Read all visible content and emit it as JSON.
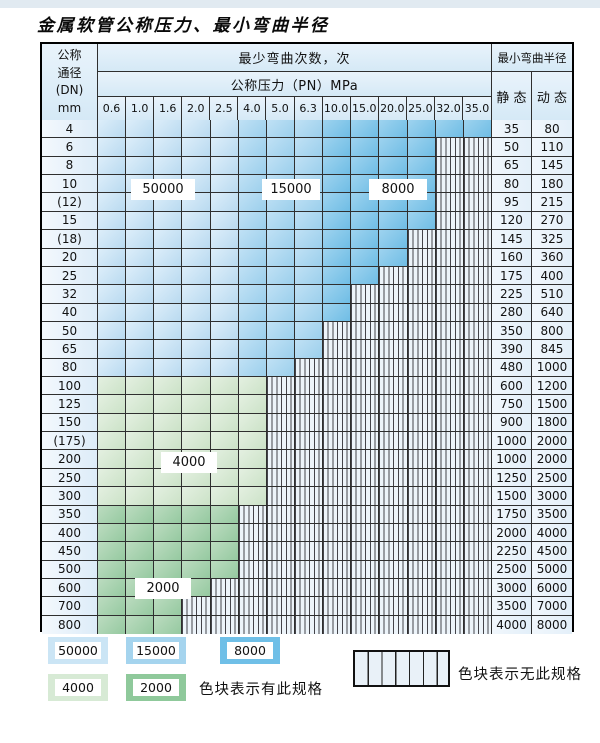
{
  "title": "金属软管公称压力、最小弯曲半径",
  "table": {
    "header": {
      "dn_label_lines": [
        "公称",
        "通径",
        "(DN)",
        "mm"
      ],
      "cycles_label": "最少弯曲次数，次",
      "pressure_label": "公称压力（PN）MPa",
      "pressures": [
        "0.6",
        "1.0",
        "1.6",
        "2.0",
        "2.5",
        "4.0",
        "5.0",
        "6.3",
        "10.0",
        "15.0",
        "20.0",
        "25.0",
        "32.0",
        "35.0"
      ],
      "radius_label": "最小弯曲半径",
      "static_label": "静 态",
      "dynamic_label": "动 态"
    },
    "rows": [
      {
        "dn": "4",
        "static": "35",
        "dynamic": "80",
        "segments": [
          [
            "b1",
            5
          ],
          [
            "b2",
            3
          ],
          [
            "b3",
            6
          ]
        ]
      },
      {
        "dn": "6",
        "static": "50",
        "dynamic": "110",
        "segments": [
          [
            "b1",
            5
          ],
          [
            "b2",
            3
          ],
          [
            "b3",
            4
          ]
        ]
      },
      {
        "dn": "8",
        "static": "65",
        "dynamic": "145",
        "segments": [
          [
            "b1",
            5
          ],
          [
            "b2",
            3
          ],
          [
            "b3",
            4
          ]
        ]
      },
      {
        "dn": "10",
        "static": "80",
        "dynamic": "180",
        "segments": [
          [
            "b1",
            5
          ],
          [
            "b2",
            3
          ],
          [
            "b3",
            4
          ]
        ]
      },
      {
        "dn": "(12)",
        "static": "95",
        "dynamic": "215",
        "segments": [
          [
            "b1",
            5
          ],
          [
            "b2",
            3
          ],
          [
            "b3",
            4
          ]
        ]
      },
      {
        "dn": "15",
        "static": "120",
        "dynamic": "270",
        "segments": [
          [
            "b1",
            5
          ],
          [
            "b2",
            3
          ],
          [
            "b3",
            4
          ]
        ]
      },
      {
        "dn": "(18)",
        "static": "145",
        "dynamic": "325",
        "segments": [
          [
            "b1",
            5
          ],
          [
            "b2",
            3
          ],
          [
            "b3",
            3
          ]
        ]
      },
      {
        "dn": "20",
        "static": "160",
        "dynamic": "360",
        "segments": [
          [
            "b1",
            5
          ],
          [
            "b2",
            3
          ],
          [
            "b3",
            3
          ]
        ]
      },
      {
        "dn": "25",
        "static": "175",
        "dynamic": "400",
        "segments": [
          [
            "b1",
            5
          ],
          [
            "b2",
            3
          ],
          [
            "b3",
            2
          ]
        ]
      },
      {
        "dn": "32",
        "static": "225",
        "dynamic": "510",
        "segments": [
          [
            "b1",
            5
          ],
          [
            "b2",
            3
          ],
          [
            "b3",
            1
          ]
        ]
      },
      {
        "dn": "40",
        "static": "280",
        "dynamic": "640",
        "segments": [
          [
            "b1",
            5
          ],
          [
            "b2",
            3
          ],
          [
            "b3",
            1
          ]
        ]
      },
      {
        "dn": "50",
        "static": "350",
        "dynamic": "800",
        "segments": [
          [
            "b1",
            5
          ],
          [
            "b2",
            3
          ]
        ]
      },
      {
        "dn": "65",
        "static": "390",
        "dynamic": "845",
        "segments": [
          [
            "b1",
            5
          ],
          [
            "b2",
            3
          ]
        ]
      },
      {
        "dn": "80",
        "static": "480",
        "dynamic": "1000",
        "segments": [
          [
            "b1",
            5
          ],
          [
            "b2",
            2
          ]
        ]
      },
      {
        "dn": "100",
        "static": "600",
        "dynamic": "1200",
        "segments": [
          [
            "g1",
            6
          ]
        ]
      },
      {
        "dn": "125",
        "static": "750",
        "dynamic": "1500",
        "segments": [
          [
            "g1",
            6
          ]
        ]
      },
      {
        "dn": "150",
        "static": "900",
        "dynamic": "1800",
        "segments": [
          [
            "g1",
            6
          ]
        ]
      },
      {
        "dn": "(175)",
        "static": "1000",
        "dynamic": "2000",
        "segments": [
          [
            "g1",
            6
          ]
        ]
      },
      {
        "dn": "200",
        "static": "1000",
        "dynamic": "2000",
        "segments": [
          [
            "g1",
            6
          ]
        ]
      },
      {
        "dn": "250",
        "static": "1250",
        "dynamic": "2500",
        "segments": [
          [
            "g1",
            6
          ]
        ]
      },
      {
        "dn": "300",
        "static": "1500",
        "dynamic": "3000",
        "segments": [
          [
            "g1",
            6
          ]
        ]
      },
      {
        "dn": "350",
        "static": "1750",
        "dynamic": "3500",
        "segments": [
          [
            "g2",
            5
          ]
        ]
      },
      {
        "dn": "400",
        "static": "2000",
        "dynamic": "4000",
        "segments": [
          [
            "g2",
            5
          ]
        ]
      },
      {
        "dn": "450",
        "static": "2250",
        "dynamic": "4500",
        "segments": [
          [
            "g2",
            5
          ]
        ]
      },
      {
        "dn": "500",
        "static": "2500",
        "dynamic": "5000",
        "segments": [
          [
            "g2",
            5
          ]
        ]
      },
      {
        "dn": "600",
        "static": "3000",
        "dynamic": "6000",
        "segments": [
          [
            "g2",
            4
          ]
        ]
      },
      {
        "dn": "700",
        "static": "3500",
        "dynamic": "7000",
        "segments": [
          [
            "g2",
            3
          ]
        ]
      },
      {
        "dn": "800",
        "static": "4000",
        "dynamic": "8000",
        "segments": [
          [
            "g2",
            3
          ]
        ]
      }
    ]
  },
  "overlay_labels": {
    "cycles_50000": "50000",
    "cycles_15000": "15000",
    "cycles_8000": "8000",
    "cycles_4000": "4000",
    "cycles_2000": "2000"
  },
  "legend": {
    "items": [
      {
        "value": "50000",
        "cls": "b1",
        "color": "#cbe5f5"
      },
      {
        "value": "15000",
        "cls": "b2",
        "color": "#a5d4ee"
      },
      {
        "value": "8000",
        "cls": "b3",
        "color": "#6fbfe7"
      },
      {
        "value": "4000",
        "cls": "g1",
        "color": "#d7ead5"
      },
      {
        "value": "2000",
        "cls": "g2",
        "color": "#8fc99b"
      }
    ],
    "has_spec_text": "色块表示有此规格",
    "no_spec_text": "色块表示无此规格"
  },
  "colors": {
    "cycles_50000": "#c7e3f4",
    "cycles_15000": "#a5d4ee",
    "cycles_8000": "#7cc2e8",
    "cycles_4000": "#d4e8d2",
    "cycles_2000": "#9bcda5",
    "no_spec_background": "#edf4fa",
    "header_background": "#dcedf8"
  }
}
